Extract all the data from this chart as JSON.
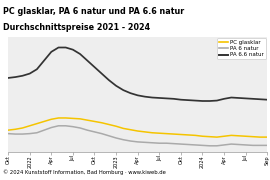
{
  "title_line1": "PC glasklar, PA 6 natur und PA 6.6 natur",
  "title_line2": "Durchschnittspreise 2021 - 2024",
  "title_bg": "#f5c400",
  "footer": "© 2024 Kunststoff Information, Bad Homburg · www.kiweb.de",
  "footer_bg": "#a0a0a0",
  "plot_bg": "#eeeeee",
  "x_labels": [
    "Okt",
    "2022",
    "Apr",
    "Jul",
    "Okt",
    "2023",
    "Apr",
    "Jul",
    "Okt",
    "2024",
    "Apr",
    "Jul",
    "Sep"
  ],
  "tick_positions": [
    0,
    3,
    6,
    9,
    12,
    15,
    18,
    21,
    24,
    27,
    30,
    33,
    36
  ],
  "legend_labels": [
    "PC glasklar",
    "PA 6 natur",
    "PA 6.6 natur"
  ],
  "legend_colors": [
    "#f5c400",
    "#aaaaaa",
    "#333333"
  ],
  "n_points": 37,
  "pc_glasklar": [
    1.5,
    1.52,
    1.55,
    1.6,
    1.65,
    1.7,
    1.75,
    1.78,
    1.78,
    1.77,
    1.76,
    1.73,
    1.7,
    1.67,
    1.63,
    1.59,
    1.54,
    1.51,
    1.48,
    1.46,
    1.44,
    1.43,
    1.42,
    1.41,
    1.4,
    1.39,
    1.38,
    1.36,
    1.35,
    1.34,
    1.36,
    1.38,
    1.37,
    1.36,
    1.35,
    1.34,
    1.34
  ],
  "pa6_natur": [
    1.42,
    1.41,
    1.41,
    1.42,
    1.44,
    1.5,
    1.56,
    1.6,
    1.6,
    1.58,
    1.55,
    1.5,
    1.46,
    1.42,
    1.37,
    1.32,
    1.28,
    1.25,
    1.23,
    1.22,
    1.21,
    1.2,
    1.2,
    1.19,
    1.18,
    1.17,
    1.16,
    1.15,
    1.14,
    1.14,
    1.16,
    1.18,
    1.17,
    1.16,
    1.15,
    1.15,
    1.15
  ],
  "pa66_natur": [
    2.7,
    2.72,
    2.75,
    2.8,
    2.9,
    3.1,
    3.3,
    3.4,
    3.4,
    3.35,
    3.25,
    3.1,
    2.95,
    2.8,
    2.65,
    2.52,
    2.42,
    2.35,
    2.3,
    2.27,
    2.25,
    2.24,
    2.23,
    2.22,
    2.2,
    2.19,
    2.18,
    2.17,
    2.17,
    2.18,
    2.22,
    2.25,
    2.24,
    2.23,
    2.22,
    2.21,
    2.2
  ],
  "ylim": [
    1.0,
    3.65
  ],
  "grid_color": "#cccccc",
  "line_width": 1.1,
  "title_fontsize": 5.8,
  "xlabel_fontsize": 3.6,
  "legend_fontsize": 4.0,
  "footer_fontsize": 3.8
}
